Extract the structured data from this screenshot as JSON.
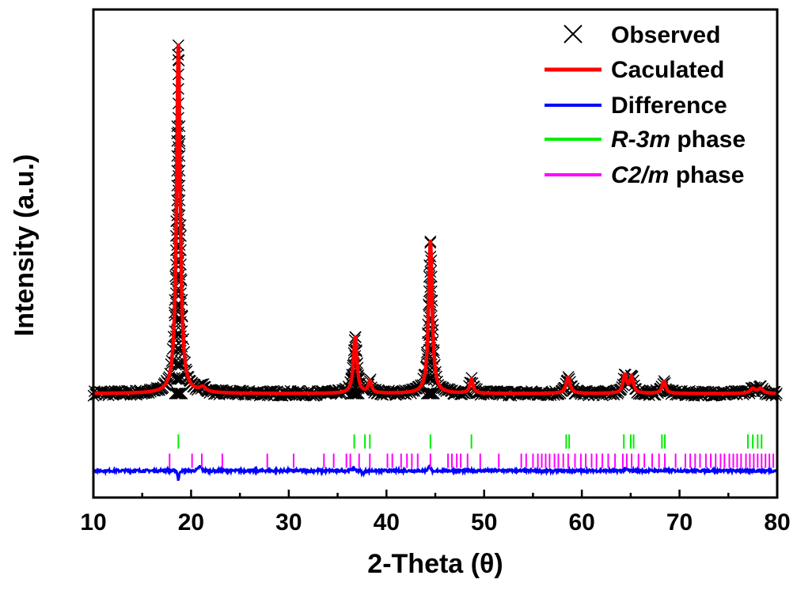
{
  "chart_data": {
    "type": "line",
    "xlabel": "2-Theta (θ)",
    "ylabel": "Intensity (a.u.)",
    "xlim": [
      10,
      80
    ],
    "ylim": [
      -0.22,
      1.0
    ],
    "x_ticks": [
      10,
      20,
      30,
      40,
      50,
      60,
      70,
      80
    ],
    "grid": false,
    "legend_position": "top-right",
    "background": 0.04,
    "peaks": [
      {
        "x": 18.7,
        "height": 0.87,
        "width": 0.22
      },
      {
        "x": 21.2,
        "height": 0.012,
        "width": 0.4
      },
      {
        "x": 36.8,
        "height": 0.14,
        "width": 0.22
      },
      {
        "x": 38.3,
        "height": 0.03,
        "width": 0.2
      },
      {
        "x": 44.5,
        "height": 0.38,
        "width": 0.22
      },
      {
        "x": 48.7,
        "height": 0.035,
        "width": 0.2
      },
      {
        "x": 58.6,
        "height": 0.04,
        "width": 0.25
      },
      {
        "x": 64.4,
        "height": 0.045,
        "width": 0.22
      },
      {
        "x": 65.1,
        "height": 0.04,
        "width": 0.22
      },
      {
        "x": 68.4,
        "height": 0.03,
        "width": 0.22
      },
      {
        "x": 77.5,
        "height": 0.012,
        "width": 0.3
      },
      {
        "x": 78.3,
        "height": 0.012,
        "width": 0.3
      }
    ],
    "difference_offset": -0.153,
    "r3m_offset": -0.08,
    "c2m_offset": -0.128,
    "r3m_ticks": [
      18.7,
      36.7,
      37.8,
      38.3,
      44.5,
      48.7,
      58.4,
      58.7,
      64.3,
      65.0,
      65.3,
      68.2,
      68.5,
      77.0,
      77.5,
      78.0,
      78.4
    ],
    "c2m_ticks": [
      17.8,
      20.1,
      21.1,
      23.2,
      27.8,
      30.5,
      33.6,
      34.6,
      35.9,
      36.3,
      37.2,
      38.3,
      40.1,
      40.6,
      41.5,
      42.1,
      42.6,
      43.2,
      44.5,
      46.3,
      46.7,
      47.2,
      47.6,
      48.3,
      49.6,
      51.5,
      53.8,
      54.3,
      55.0,
      55.5,
      55.9,
      56.3,
      56.7,
      57.2,
      57.6,
      58.1,
      58.6,
      59.3,
      59.9,
      60.4,
      61.0,
      61.5,
      62.1,
      62.7,
      63.4,
      64.2,
      64.6,
      65.1,
      65.8,
      66.4,
      67.2,
      67.9,
      68.5,
      69.6,
      70.6,
      71.1,
      71.6,
      72.1,
      72.7,
      73.2,
      73.7,
      74.2,
      74.6,
      75.1,
      75.5,
      75.9,
      76.3,
      76.8,
      77.2,
      77.6,
      78.0,
      78.4,
      78.8,
      79.2,
      79.6
    ],
    "series": [
      {
        "name": "Observed",
        "style": "cross",
        "color": "#000000"
      },
      {
        "name": "Caculated",
        "style": "line",
        "color": "#ff0000"
      },
      {
        "name": "Difference",
        "style": "line",
        "color": "#0000ff"
      },
      {
        "name_italic": "R-3m",
        "name_rest": " phase",
        "style": "ticks",
        "color": "#00ee00"
      },
      {
        "name_italic": "C2/m",
        "name_rest": " phase",
        "style": "ticks",
        "color": "#ff00ff"
      }
    ]
  }
}
